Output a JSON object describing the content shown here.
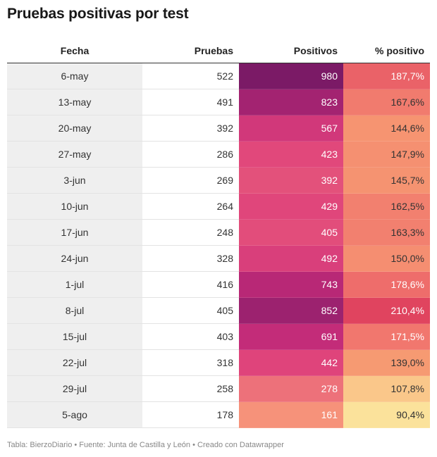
{
  "title": "Pruebas positivas por test",
  "footer": "Tabla: BierzoDiario • Fuente: Junta de Castilla y León • Creado con Datawrapper",
  "chart_data": {
    "type": "table",
    "columns": [
      "Fecha",
      "Pruebas",
      "Positivos",
      "% positivo"
    ],
    "rows": [
      {
        "fecha": "6-may",
        "pruebas": 522,
        "positivos": 980,
        "pct": "187,7%"
      },
      {
        "fecha": "13-may",
        "pruebas": 491,
        "positivos": 823,
        "pct": "167,6%"
      },
      {
        "fecha": "20-may",
        "pruebas": 392,
        "positivos": 567,
        "pct": "144,6%"
      },
      {
        "fecha": "27-may",
        "pruebas": 286,
        "positivos": 423,
        "pct": "147,9%"
      },
      {
        "fecha": "3-jun",
        "pruebas": 269,
        "positivos": 392,
        "pct": "145,7%"
      },
      {
        "fecha": "10-jun",
        "pruebas": 264,
        "positivos": 429,
        "pct": "162,5%"
      },
      {
        "fecha": "17-jun",
        "pruebas": 248,
        "positivos": 405,
        "pct": "163,3%"
      },
      {
        "fecha": "24-jun",
        "pruebas": 328,
        "positivos": 492,
        "pct": "150,0%"
      },
      {
        "fecha": "1-jul",
        "pruebas": 416,
        "positivos": 743,
        "pct": "178,6%"
      },
      {
        "fecha": "8-jul",
        "pruebas": 405,
        "positivos": 852,
        "pct": "210,4%"
      },
      {
        "fecha": "15-jul",
        "pruebas": 403,
        "positivos": 691,
        "pct": "171,5%"
      },
      {
        "fecha": "22-jul",
        "pruebas": 318,
        "positivos": 442,
        "pct": "139,0%"
      },
      {
        "fecha": "29-jul",
        "pruebas": 258,
        "positivos": 278,
        "pct": "107,8%"
      },
      {
        "fecha": "5-ago",
        "pruebas": 178,
        "positivos": 161,
        "pct": "90,4%"
      }
    ],
    "color_scales": {
      "positivos": {
        "domain": [
          161,
          980
        ],
        "colors": [
          "#f6927a",
          "#e0457b",
          "#c12a79",
          "#7b1a66"
        ]
      },
      "pct": {
        "domain": [
          90.4,
          210.4
        ],
        "colors": [
          "#fbe29b",
          "#f8a373",
          "#f1786e",
          "#e0445f"
        ]
      }
    }
  }
}
